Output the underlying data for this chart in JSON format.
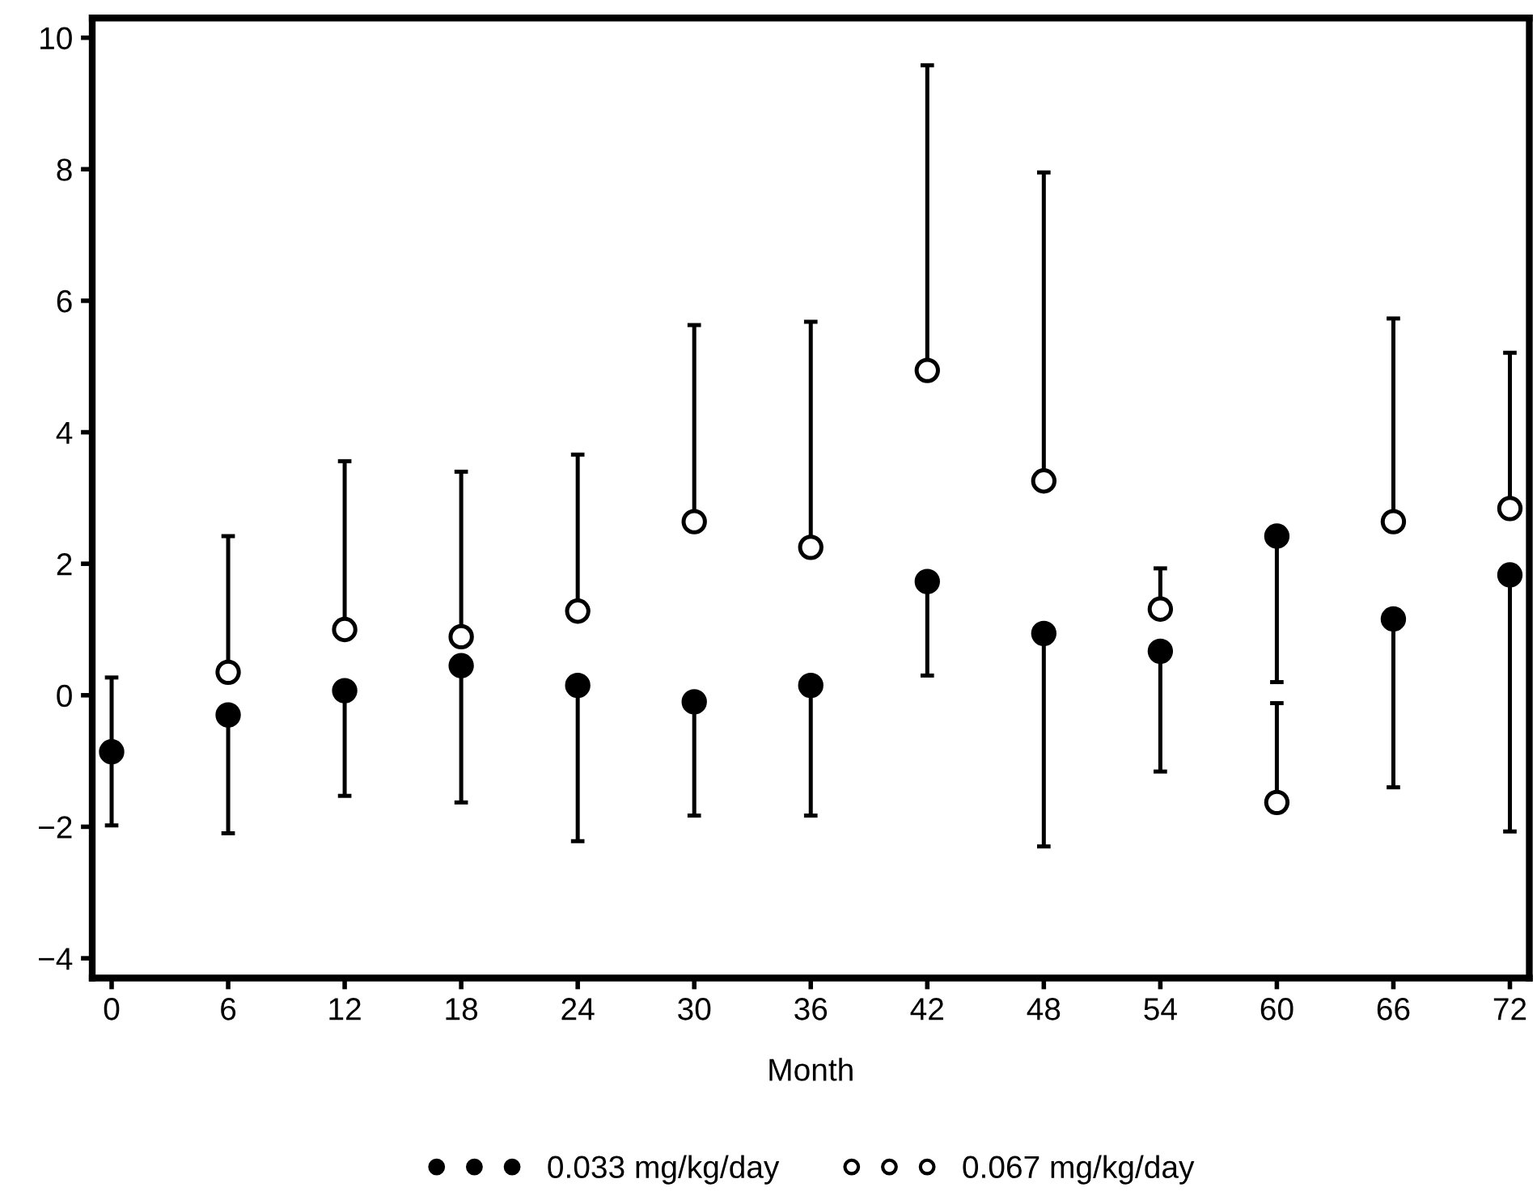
{
  "chart_data": {
    "type": "scatter",
    "xlabel": "Month",
    "x": [
      0,
      6,
      12,
      18,
      24,
      30,
      36,
      42,
      48,
      54,
      60,
      66,
      72
    ],
    "xlim": [
      -1,
      73
    ],
    "xticks": [
      0,
      6,
      12,
      18,
      24,
      30,
      36,
      42,
      48,
      54,
      60,
      66,
      72
    ],
    "ylim": [
      -4.3,
      10.3
    ],
    "yticks": [
      {
        "value": -4,
        "label": "−4"
      },
      {
        "value": -2,
        "label": "−2"
      },
      0,
      2,
      4,
      6,
      8,
      10
    ],
    "grid": false,
    "legend": "bottom",
    "series": [
      {
        "name": "0.033 mg/kg/day",
        "color": "#000000",
        "marker": "circle",
        "values": [
          -0.86,
          -0.3,
          0.07,
          0.45,
          0.15,
          -0.1,
          0.15,
          1.73,
          0.94,
          0.67,
          2.42,
          1.16,
          1.83
        ],
        "errors": [
          [
            -1.98,
            0.27
          ],
          [
            -2.1,
            -0.3
          ],
          [
            -1.53,
            0.07
          ],
          [
            -1.63,
            0.45
          ],
          [
            -2.22,
            0.15
          ],
          [
            -1.83,
            -0.1
          ],
          [
            -1.83,
            0.15
          ],
          [
            0.3,
            1.73
          ],
          [
            -2.3,
            0.94
          ],
          [
            -1.16,
            0.67
          ],
          [
            0.2,
            2.42
          ],
          [
            -1.4,
            1.16
          ],
          [
            -2.07,
            1.83
          ]
        ]
      },
      {
        "name": "0.067 mg/kg/day",
        "color": "#000000",
        "marker": "circle",
        "values": [
          null,
          0.35,
          1.0,
          0.89,
          1.28,
          2.64,
          2.25,
          4.94,
          3.26,
          1.31,
          -1.63,
          2.64,
          2.84
        ],
        "errors": [
          null,
          [
            0.35,
            2.42
          ],
          [
            1.0,
            3.56
          ],
          [
            0.89,
            3.4
          ],
          [
            1.28,
            3.66
          ],
          [
            2.64,
            5.63
          ],
          [
            2.25,
            5.68
          ],
          [
            4.94,
            9.58
          ],
          [
            3.26,
            7.95
          ],
          [
            1.31,
            1.93
          ],
          [
            -1.63,
            -0.12
          ],
          [
            2.64,
            5.73
          ],
          [
            2.84,
            5.21
          ]
        ]
      }
    ]
  }
}
